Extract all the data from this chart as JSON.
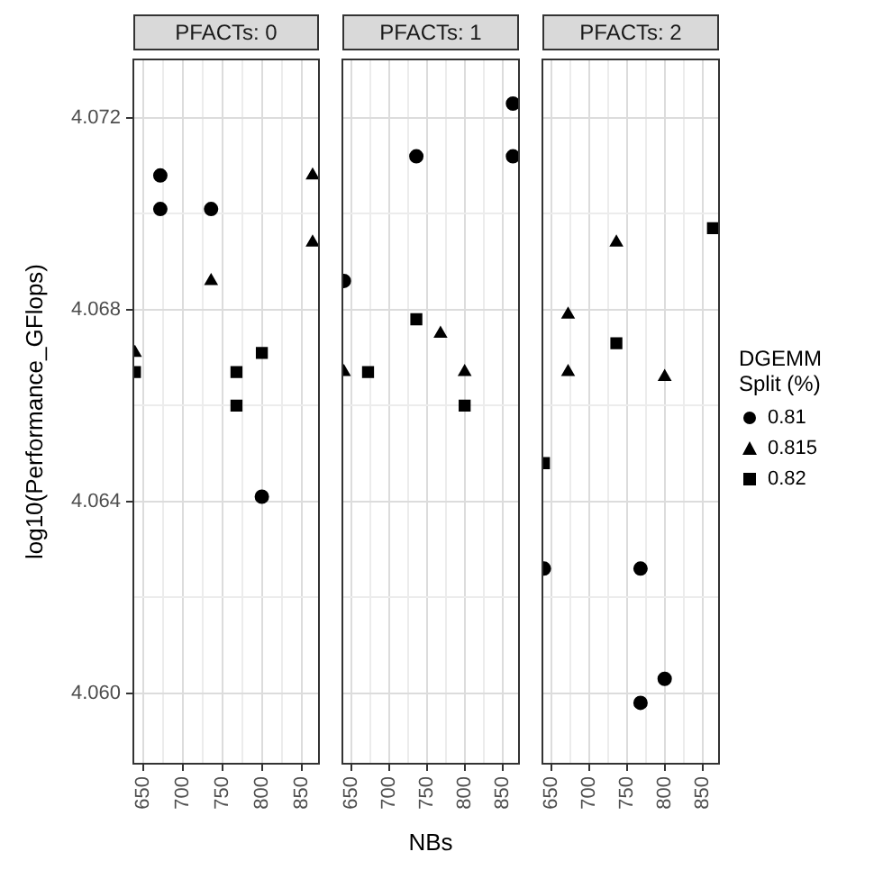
{
  "chart_data": [
    {
      "type": "scatter",
      "title": "PFACTs: 0",
      "ylabel": "log10(Performance_GFlops)",
      "xlim": [
        638,
        872
      ],
      "ylim": [
        4.05853,
        4.07322
      ],
      "xticks": [
        650,
        {
          "value": 675,
          "label": null
        },
        700,
        {
          "value": 725,
          "label": null
        },
        750,
        {
          "value": 775,
          "label": null
        },
        800,
        {
          "value": 825,
          "label": null
        },
        850
      ],
      "yticks": [
        {
          "value": 4.06,
          "label": "4.060"
        },
        {
          "value": 4.062,
          "label": null
        },
        4.064,
        {
          "value": 4.066,
          "label": null
        },
        4.068,
        {
          "value": 4.07,
          "label": null
        },
        4.072
      ],
      "grid": true,
      "legend": false,
      "series": [
        {
          "color": "#000000",
          "marker": "circle",
          "x": [
            672,
            672,
            736,
            800
          ],
          "values": [
            4.0708,
            4.0701,
            4.0701,
            4.0641
          ]
        },
        {
          "color": "#000000",
          "marker": "triangle",
          "x": [
            864,
            864,
            736,
            640
          ],
          "values": [
            4.0708,
            4.0694,
            4.0686,
            4.0671
          ]
        },
        {
          "color": "#000000",
          "marker": "square",
          "x": [
            640,
            768,
            768,
            800
          ],
          "values": [
            4.0667,
            4.0667,
            4.066,
            4.0671
          ]
        }
      ]
    },
    {
      "type": "scatter",
      "title": "PFACTs: 1",
      "xlabel": "NBs",
      "xlim": [
        638,
        872
      ],
      "ylim": [
        4.05853,
        4.07322
      ],
      "tick_labels": "x",
      "xticks": [
        650,
        {
          "value": 675,
          "label": null
        },
        700,
        {
          "value": 725,
          "label": null
        },
        750,
        {
          "value": 775,
          "label": null
        },
        800,
        {
          "value": 825,
          "label": null
        },
        850
      ],
      "yticks": [
        4.06,
        {
          "value": 4.062,
          "label": null
        },
        4.064,
        {
          "value": 4.066,
          "label": null
        },
        4.068,
        {
          "value": 4.07,
          "label": null
        },
        4.072
      ],
      "grid": true,
      "legend": false,
      "series": [
        {
          "color": "#000000",
          "marker": "circle",
          "x": [
            864,
            736,
            864,
            640
          ],
          "values": [
            4.0723,
            4.0712,
            4.0712,
            4.0686
          ]
        },
        {
          "color": "#000000",
          "marker": "triangle",
          "x": [
            768,
            640,
            800
          ],
          "values": [
            4.0675,
            4.0667,
            4.0667
          ]
        },
        {
          "color": "#000000",
          "marker": "square",
          "x": [
            736,
            672,
            800
          ],
          "values": [
            4.0678,
            4.0667,
            4.066
          ]
        }
      ]
    },
    {
      "type": "scatter",
      "title": "PFACTs: 2",
      "legend_title": "DGEMM\nSplit (%)",
      "xlim": [
        638,
        872
      ],
      "ylim": [
        4.05853,
        4.07322
      ],
      "tick_labels": "x",
      "xticks": [
        650,
        {
          "value": 675,
          "label": null
        },
        700,
        {
          "value": 725,
          "label": null
        },
        750,
        {
          "value": 775,
          "label": null
        },
        800,
        {
          "value": 825,
          "label": null
        },
        850
      ],
      "yticks": [
        4.06,
        {
          "value": 4.062,
          "label": null
        },
        4.064,
        {
          "value": 4.066,
          "label": null
        },
        4.068,
        {
          "value": 4.07,
          "label": null
        },
        4.072
      ],
      "grid": true,
      "legend": "right",
      "series": [
        {
          "name": "0.81",
          "color": "#000000",
          "marker": "circle",
          "x": [
            640,
            768,
            800,
            768
          ],
          "values": [
            4.0626,
            4.0626,
            4.0603,
            4.0598
          ]
        },
        {
          "name": "0.815",
          "color": "#000000",
          "marker": "triangle",
          "x": [
            736,
            672,
            672,
            800
          ],
          "values": [
            4.0694,
            4.0679,
            4.0667,
            4.0666
          ]
        },
        {
          "name": "0.82",
          "color": "#000000",
          "marker": "square",
          "x": [
            864,
            736,
            640
          ],
          "values": [
            4.0697,
            4.0673,
            4.0648
          ]
        }
      ]
    }
  ]
}
